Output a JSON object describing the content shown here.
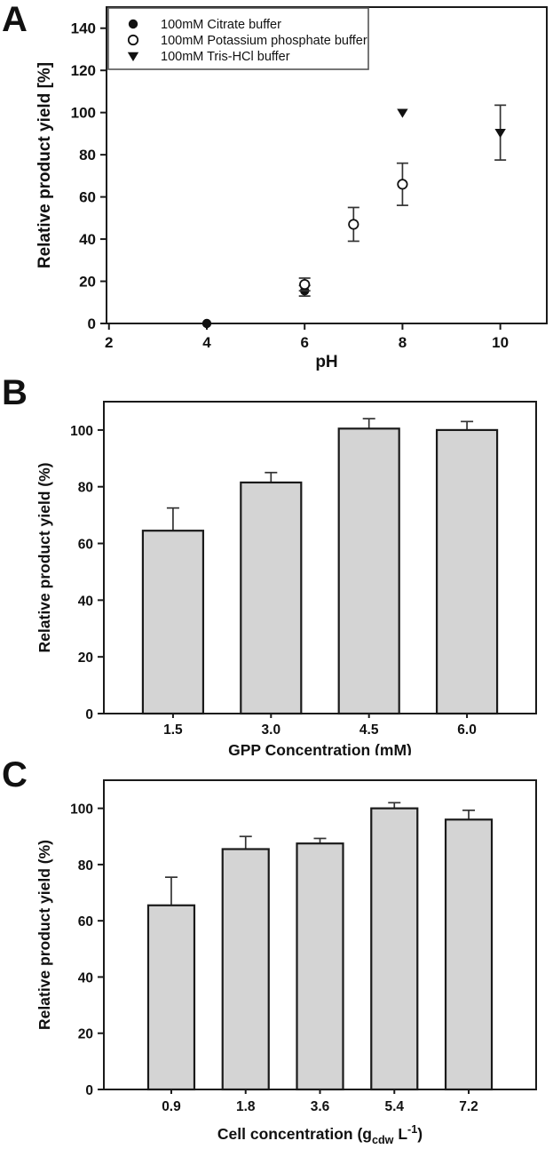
{
  "figure": {
    "background": "#ffffff",
    "description": "Three-panel figure of relative product yield experiments"
  },
  "colors": {
    "axis": "#1a1a1a",
    "text": "#111111",
    "bar_fill": "#d4d4d4",
    "bar_stroke": "#1a1a1a",
    "marker_fill": "#111111",
    "marker_open_fill": "#ffffff",
    "error_bar": "#333333",
    "legend_border": "#555555"
  },
  "chart_data": [
    {
      "id": "panel-a",
      "panel_label": "A",
      "type": "scatter",
      "xlabel": "pH",
      "ylabel": "Relative product yield [%]",
      "xlim": [
        1.95,
        10.95
      ],
      "ylim": [
        0,
        150
      ],
      "xticks": [
        2,
        4,
        6,
        8,
        10
      ],
      "yticks": [
        0,
        20,
        40,
        60,
        80,
        100,
        120,
        140
      ],
      "grid": false,
      "legend_position": "top-left",
      "series": [
        {
          "name": "100mM Citrate buffer",
          "marker": "filled-circle",
          "points": [
            {
              "x": 4,
              "y": 0,
              "err": 0
            },
            {
              "x": 6,
              "y": 15.5,
              "err": 2.5
            }
          ]
        },
        {
          "name": "100mM Potassium phosphate buffer",
          "marker": "open-circle",
          "points": [
            {
              "x": 6,
              "y": 18.5,
              "err": 3
            },
            {
              "x": 7,
              "y": 47,
              "err": 8
            },
            {
              "x": 8,
              "y": 66,
              "err": 10
            }
          ]
        },
        {
          "name": "100mM Tris-HCl buffer",
          "marker": "filled-triangle-down",
          "points": [
            {
              "x": 8,
              "y": 100,
              "err": 0
            },
            {
              "x": 10,
              "y": 90.5,
              "err": 13
            }
          ]
        }
      ]
    },
    {
      "id": "panel-b",
      "panel_label": "B",
      "type": "bar",
      "xlabel": "GPP Concentration (mM)",
      "ylabel": "Relative product yield (%)",
      "ylim": [
        0,
        110
      ],
      "yticks": [
        0,
        20,
        40,
        60,
        80,
        100
      ],
      "grid": false,
      "categories": [
        "1.5",
        "3.0",
        "4.5",
        "6.0"
      ],
      "values": [
        64.5,
        81.5,
        100.5,
        100
      ],
      "errors": [
        8,
        3.5,
        3.5,
        3
      ]
    },
    {
      "id": "panel-c",
      "panel_label": "C",
      "type": "bar",
      "xlabel_parts": {
        "prefix": "Cell concentration (g",
        "sub": "cdw",
        "mid": " L",
        "sup": "-1",
        "suffix": ")"
      },
      "ylabel": "Relative product yield (%)",
      "ylim": [
        0,
        110
      ],
      "yticks": [
        0,
        20,
        40,
        60,
        80,
        100
      ],
      "grid": false,
      "categories": [
        "0.9",
        "1.8",
        "3.6",
        "5.4",
        "7.2"
      ],
      "values": [
        65.5,
        85.5,
        87.5,
        100,
        96
      ],
      "errors": [
        10,
        4.5,
        1.8,
        2,
        3.3
      ]
    }
  ]
}
